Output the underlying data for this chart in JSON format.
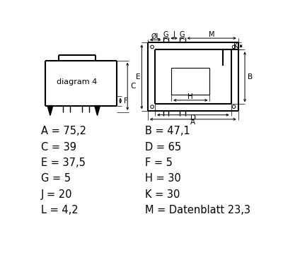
{
  "background_color": "#ffffff",
  "dim_labels_left": [
    [
      "A",
      "75,2"
    ],
    [
      "C",
      "39"
    ],
    [
      "E",
      "37,5"
    ],
    [
      "G",
      "5"
    ],
    [
      "J",
      "20"
    ],
    [
      "L",
      "4,2"
    ]
  ],
  "dim_labels_right": [
    [
      "B",
      "47,1"
    ],
    [
      "D",
      "65"
    ],
    [
      "F",
      "5"
    ],
    [
      "H",
      "30"
    ],
    [
      "K",
      "30"
    ],
    [
      "M",
      "Datenblatt 23,3"
    ]
  ]
}
